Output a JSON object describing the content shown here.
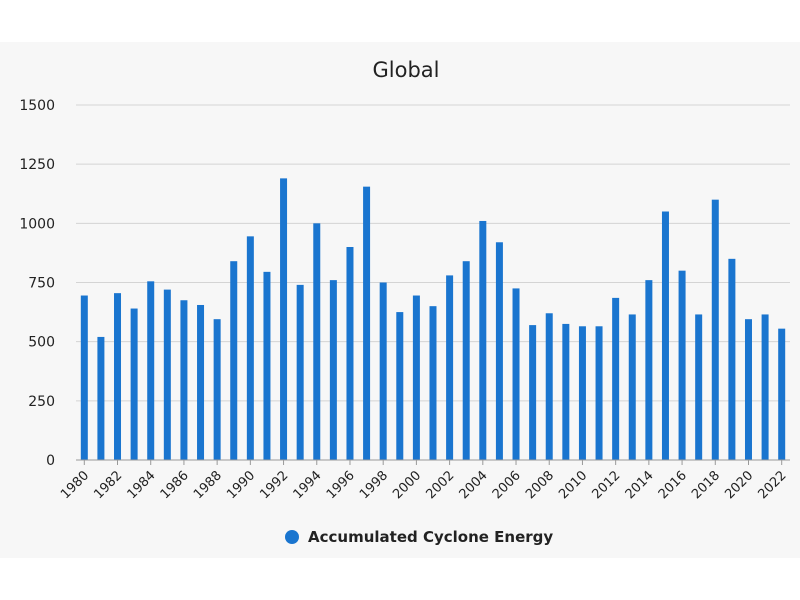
{
  "chart_data": {
    "type": "bar",
    "title": "Global",
    "xlabel": "",
    "ylabel": "",
    "ylim": [
      0,
      1500
    ],
    "yticks": [
      0,
      250,
      500,
      750,
      1000,
      1250,
      1500
    ],
    "grid": true,
    "legend_position": "bottom-center",
    "color": "#1a75cf",
    "categories": [
      "1980",
      "1981",
      "1982",
      "1983",
      "1984",
      "1985",
      "1986",
      "1987",
      "1988",
      "1989",
      "1990",
      "1991",
      "1992",
      "1993",
      "1994",
      "1995",
      "1996",
      "1997",
      "1998",
      "1999",
      "2000",
      "2001",
      "2002",
      "2003",
      "2004",
      "2005",
      "2006",
      "2007",
      "2008",
      "2009",
      "2010",
      "2011",
      "2012",
      "2013",
      "2014",
      "2015",
      "2016",
      "2017",
      "2018",
      "2019",
      "2020",
      "2021",
      "2022"
    ],
    "x_tick_labels": [
      "1980",
      "1982",
      "1984",
      "1986",
      "1988",
      "1990",
      "1992",
      "1994",
      "1996",
      "1998",
      "2000",
      "2002",
      "2004",
      "2006",
      "2008",
      "2010",
      "2012",
      "2014",
      "2016",
      "2018",
      "2020",
      "2022"
    ],
    "series": [
      {
        "name": "Accumulated Cyclone Energy",
        "values": [
          695,
          520,
          705,
          640,
          755,
          720,
          675,
          655,
          595,
          840,
          945,
          795,
          1190,
          740,
          1000,
          760,
          900,
          1155,
          750,
          625,
          695,
          650,
          780,
          840,
          1010,
          920,
          725,
          570,
          620,
          575,
          565,
          565,
          685,
          615,
          760,
          1050,
          800,
          615,
          1100,
          850,
          595,
          615,
          555
        ]
      }
    ]
  }
}
